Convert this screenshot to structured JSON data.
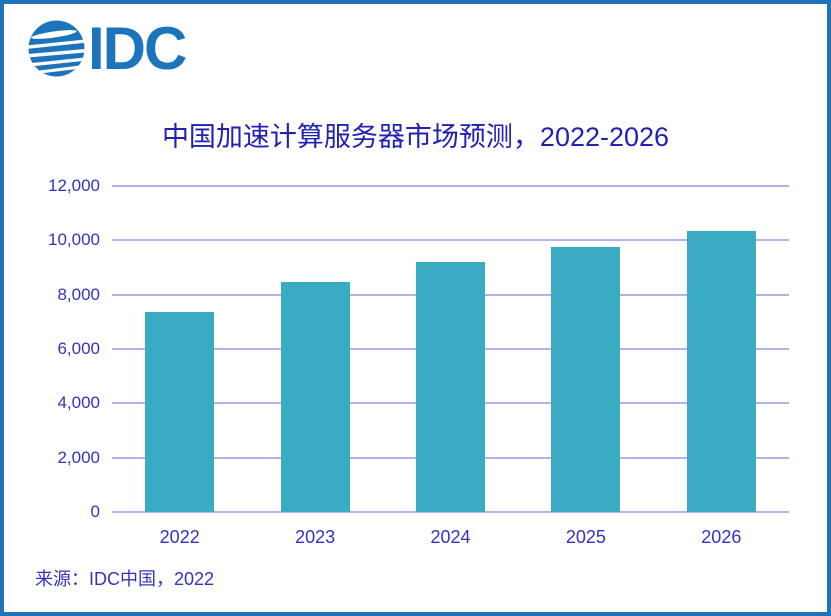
{
  "logo": {
    "text": "IDC"
  },
  "source": "来源：IDC中国，2022",
  "colors": {
    "logo_blue": "#1C75BC",
    "border_blue": "#1F74B8",
    "title_text": "#2122B2",
    "axis_text": "#3434C0",
    "bar_fill": "#39ACC4",
    "gridline": "#B3B3EA"
  },
  "chart_data": {
    "type": "bar",
    "title": "中国加速计算服务器市场预测，2022-2026",
    "categories": [
      "2022",
      "2023",
      "2024",
      "2025",
      "2026"
    ],
    "values": [
      7370,
      8470,
      9190,
      9760,
      10330
    ],
    "ylim": [
      0,
      12000
    ],
    "y_ticks": [
      0,
      2000,
      4000,
      6000,
      8000,
      10000,
      12000
    ],
    "y_tick_labels": [
      "0",
      "2,000",
      "4,000",
      "6,000",
      "8,000",
      "10,000",
      "12,000"
    ],
    "xlabel": "",
    "ylabel": "",
    "grid": true,
    "legend": false
  }
}
